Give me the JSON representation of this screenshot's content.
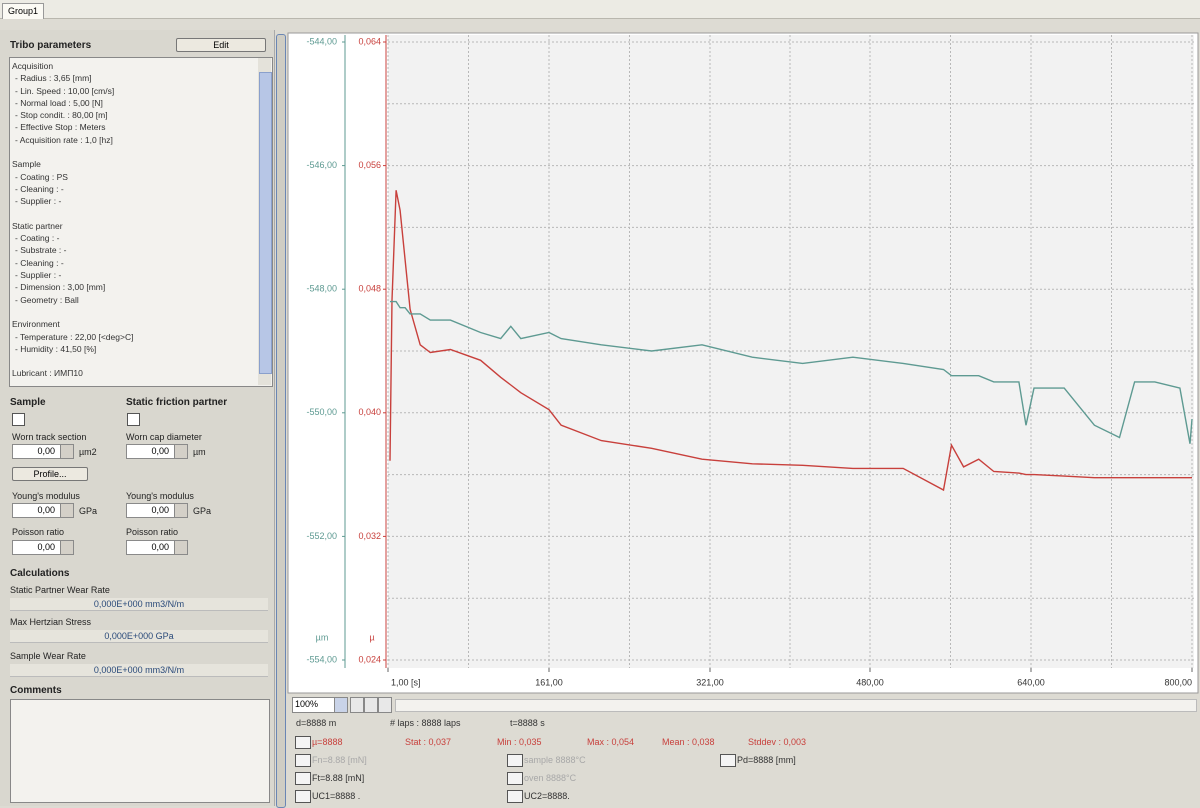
{
  "tab": "Group1",
  "tribo_parameters": {
    "title": "Tribo parameters",
    "edit": "Edit",
    "groups": [
      {
        "heading": "Acquisition",
        "items": [
          "- Radius : 3,65 [mm]",
          "- Lin. Speed : 10,00 [cm/s]",
          "- Normal load : 5,00 [N]",
          "- Stop condit. : 80,00 [m]",
          "- Effective Stop : Meters",
          "- Acquisition rate : 1,0 [hz]"
        ]
      },
      {
        "heading": "Sample",
        "items": [
          "- Coating : PS",
          "- Cleaning : -",
          "- Supplier : -"
        ]
      },
      {
        "heading": "Static partner",
        "items": [
          "- Coating : -",
          "- Substrate : -",
          "- Cleaning : -",
          "- Supplier : -",
          "- Dimension : 3,00 [mm]",
          "- Geometry : Ball"
        ]
      },
      {
        "heading": "Environment",
        "items": [
          "- Temperature : 22,00 [<deg>C]",
          "- Humidity : 41,50 [%]"
        ]
      },
      {
        "heading": "Lubricant : ИМП10",
        "items": []
      }
    ]
  },
  "sample": {
    "title": "Sample",
    "worn_label": "Worn track section",
    "worn_value": "0,00",
    "worn_unit": "µm2",
    "profile": "Profile...",
    "young_label": "Young's modulus",
    "young_value": "0,00",
    "young_unit": "GPa",
    "poisson_label": "Poisson ratio",
    "poisson_value": "0,00"
  },
  "partner": {
    "title": "Static friction partner",
    "worn_label": "Worn cap diameter",
    "worn_value": "0,00",
    "worn_unit": "µm",
    "young_label": "Young's modulus",
    "young_value": "0,00",
    "young_unit": "GPa",
    "poisson_label": "Poisson ratio",
    "poisson_value": "0,00"
  },
  "calculations": {
    "title": "Calculations",
    "rows": [
      {
        "label": "Static Partner Wear Rate",
        "value": "0,000E+000 mm3/N/m"
      },
      {
        "label": "Max Hertzian Stress",
        "value": "0,000E+000 GPa"
      },
      {
        "label": "Sample Wear Rate",
        "value": "0,000E+000 mm3/N/m"
      }
    ]
  },
  "comments": {
    "title": "Comments"
  },
  "chart_data": {
    "type": "line",
    "y_label": "µm",
    "y2_label": "µ",
    "x": [
      3,
      5,
      9,
      13,
      18,
      23,
      33,
      43,
      63,
      93,
      113,
      123,
      133,
      161,
      173,
      213,
      263,
      313,
      363,
      413,
      463,
      513,
      553,
      561,
      573,
      588,
      603,
      628,
      635,
      643,
      673,
      703,
      728,
      743,
      763,
      788,
      798,
      800
    ],
    "series": [
      {
        "name": "µ",
        "color": "#c8403c",
        "axis": "y2",
        "values": [
          0.0369,
          0.0473,
          0.0544,
          0.0531,
          0.0499,
          0.0467,
          0.0444,
          0.0439,
          0.0441,
          0.0434,
          0.0423,
          0.0418,
          0.0413,
          0.0402,
          0.0392,
          0.0382,
          0.0377,
          0.037,
          0.0367,
          0.0366,
          0.0364,
          0.0364,
          0.035,
          0.0379,
          0.0365,
          0.037,
          0.0362,
          0.0361,
          0.036,
          0.036,
          0.0359,
          0.0358,
          0.0358,
          0.0358,
          0.0358,
          0.0358,
          0.0358,
          0.0358
        ]
      },
      {
        "name": "µm",
        "color": "#5e9a92",
        "values": [
          -548.2,
          -548.2,
          -548.2,
          -548.3,
          -548.3,
          -548.4,
          -548.4,
          -548.5,
          -548.5,
          -548.7,
          -548.8,
          -548.6,
          -548.8,
          -548.7,
          -548.8,
          -548.9,
          -549.0,
          -548.9,
          -549.1,
          -549.2,
          -549.1,
          -549.2,
          -549.3,
          -549.4,
          -549.4,
          -549.4,
          -549.5,
          -549.5,
          -550.2,
          -549.6,
          -549.6,
          -550.2,
          -550.4,
          -549.5,
          -549.5,
          -549.6,
          -550.5,
          -550.1
        ]
      }
    ],
    "xlim": [
      1,
      800
    ],
    "xticks": [
      {
        "value": 1,
        "label": "1,00 [s]"
      },
      {
        "value": 161,
        "label": "161,00"
      },
      {
        "value": 321,
        "label": "321,00"
      },
      {
        "value": 480,
        "label": "480,00"
      },
      {
        "value": 640,
        "label": "640,00"
      },
      {
        "value": 800,
        "label": "800,00"
      }
    ],
    "ylim": [
      -554,
      -544
    ],
    "yticks": [
      {
        "value": -554,
        "label": "-554,00"
      },
      {
        "value": -552,
        "label": "-552,00"
      },
      {
        "value": -550,
        "label": "-550,00"
      },
      {
        "value": -548,
        "label": "-548,00"
      },
      {
        "value": -546,
        "label": "-546,00"
      },
      {
        "value": -544,
        "label": "-544,00"
      }
    ],
    "y2lim": [
      0.024,
      0.064
    ],
    "y2ticks": [
      {
        "value": 0.024,
        "label": "0,024"
      },
      {
        "value": 0.032,
        "label": "0,032"
      },
      {
        "value": 0.04,
        "label": "0,040"
      },
      {
        "value": 0.048,
        "label": "0,048"
      },
      {
        "value": 0.056,
        "label": "0,056"
      },
      {
        "value": 0.064,
        "label": "0,064"
      }
    ],
    "grid": true
  },
  "zoom": "100%",
  "status": {
    "distance": "d=8888 m",
    "laps": "# laps : 8888 laps",
    "time": "t=8888 s",
    "mu": "µ=8888",
    "stat": "Stat : 0,037",
    "min": "Min : 0,035",
    "max": "Max : 0,054",
    "mean": "Mean : 0,038",
    "stddev": "Stddev : 0,003",
    "fn": "Fn=8.88 [mN]",
    "sample_temp": "sample 8888°C",
    "pd": "Pd=8888 [mm]",
    "ft": "Ft=8.88 [mN]",
    "oven_temp": "oven 8888°C",
    "uc1": "UC1=8888 .",
    "uc2": "UC2=8888."
  }
}
